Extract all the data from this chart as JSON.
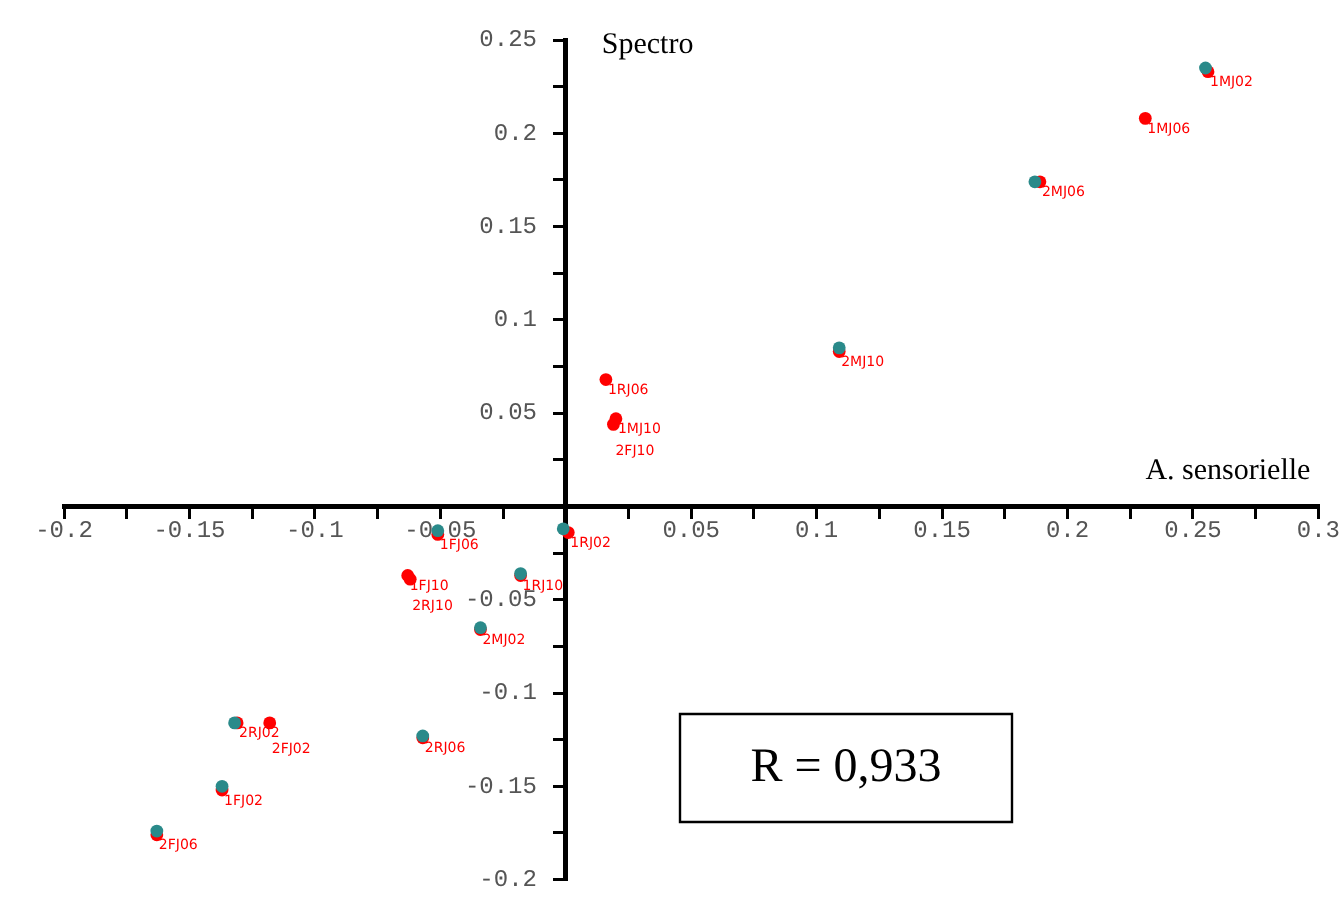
{
  "chart_data": {
    "type": "scatter",
    "xlabel": "A. sensorielle",
    "ylabel": "Spectro",
    "annotations": [
      "R = 0,933"
    ],
    "xlim": [
      -0.2,
      0.3
    ],
    "ylim": [
      -0.2,
      0.25
    ],
    "xticks": [
      -0.2,
      {
        "value": -0.175,
        "label": null
      },
      -0.15,
      {
        "value": -0.125,
        "label": null
      },
      -0.1,
      {
        "value": -0.075,
        "label": null
      },
      -0.05,
      {
        "value": -0.025,
        "label": null
      },
      {
        "value": 0,
        "label": null
      },
      {
        "value": 0.025,
        "label": null
      },
      0.05,
      {
        "value": 0.075,
        "label": null
      },
      0.1,
      {
        "value": 0.125,
        "label": null
      },
      0.15,
      {
        "value": 0.175,
        "label": null
      },
      0.2,
      {
        "value": 0.225,
        "label": null
      },
      0.25,
      {
        "value": 0.275,
        "label": null
      },
      0.3
    ],
    "yticks": [
      -0.2,
      {
        "value": -0.175,
        "label": null
      },
      -0.15,
      {
        "value": -0.125,
        "label": null
      },
      -0.1,
      {
        "value": -0.075,
        "label": null
      },
      -0.05,
      {
        "value": -0.025,
        "label": null
      },
      {
        "value": 0,
        "label": null
      },
      {
        "value": 0.025,
        "label": null
      },
      0.05,
      {
        "value": 0.075,
        "label": null
      },
      0.1,
      {
        "value": 0.125,
        "label": null
      },
      0.15,
      {
        "value": 0.175,
        "label": null
      },
      0.2,
      {
        "value": 0.225,
        "label": null
      },
      0.25
    ],
    "grid": false,
    "legend": false,
    "marker": "circle",
    "series": [
      {
        "color": "#2a8a8a",
        "x": [
          0.255,
          0.187,
          0.109,
          -0.051,
          -0.001,
          -0.018,
          -0.034,
          -0.132,
          -0.057,
          -0.137,
          -0.163
        ],
        "values": [
          0.235,
          0.174,
          0.085,
          -0.013,
          -0.012,
          -0.036,
          -0.065,
          -0.116,
          -0.123,
          -0.15,
          -0.174
        ]
      },
      {
        "color": "#ff0000",
        "x": [
          0.256,
          0.231,
          0.189,
          0.109,
          0.016,
          0.02,
          0.019,
          -0.051,
          0.001,
          -0.063,
          -0.062,
          -0.018,
          -0.034,
          -0.131,
          -0.118,
          -0.057,
          -0.137,
          -0.163
        ],
        "values": [
          0.233,
          0.208,
          0.174,
          0.083,
          0.068,
          0.047,
          0.044,
          -0.015,
          -0.014,
          -0.037,
          -0.039,
          -0.037,
          -0.066,
          -0.116,
          -0.116,
          -0.124,
          -0.152,
          -0.176
        ],
        "value_labels": [
          "1MJ02",
          "1MJ06",
          "2MJ06",
          "2MJ10",
          "1RJ06",
          "1MJ10",
          "2FJ10",
          "1FJ06",
          "1RJ02",
          "1FJ10",
          "2RJ10",
          "1RJ10",
          "2MJ02",
          "2RJ02",
          "2FJ02",
          "2RJ06",
          "1FJ02",
          "2FJ06"
        ]
      }
    ]
  }
}
